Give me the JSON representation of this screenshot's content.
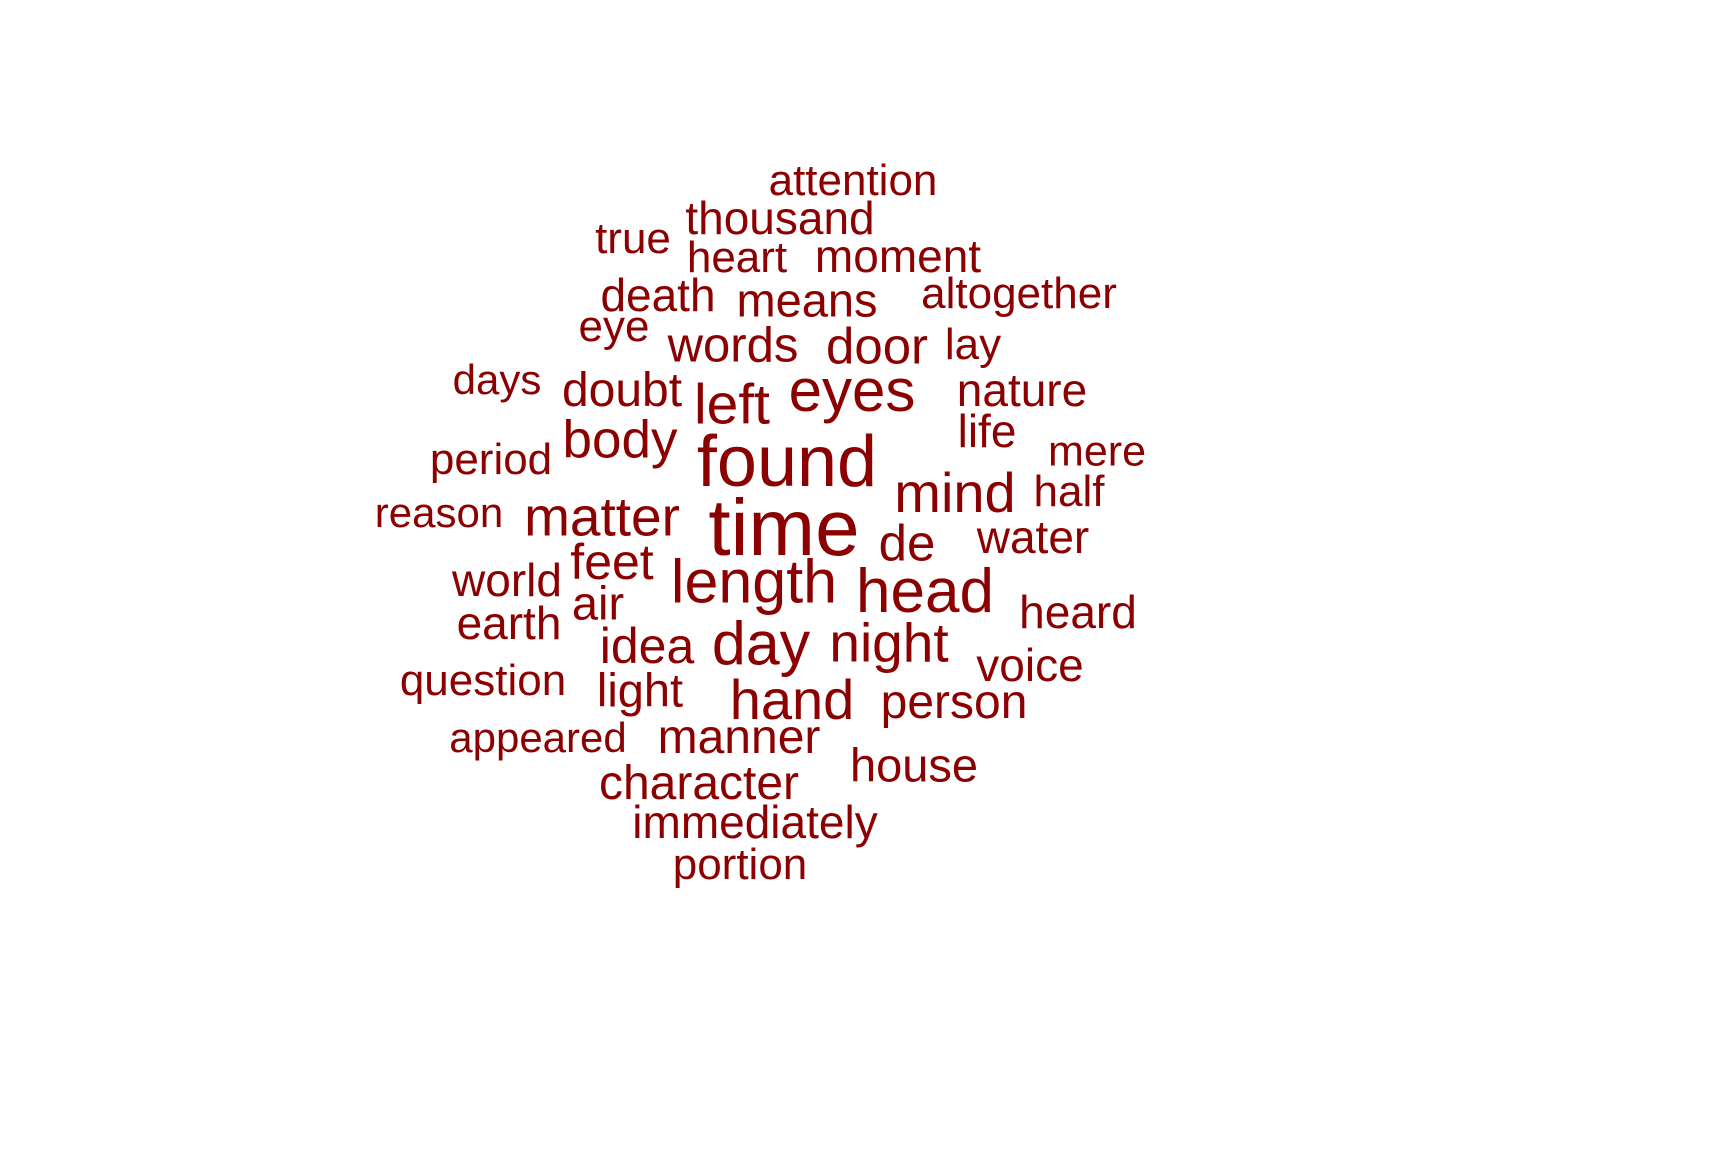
{
  "colors": {
    "background": "#ffffff",
    "word": "#8b0000"
  },
  "words": [
    {
      "id": "attention",
      "text": "attention",
      "weight": 1
    },
    {
      "id": "thousand",
      "text": "thousand",
      "weight": 1
    },
    {
      "id": "true",
      "text": "true",
      "weight": 1
    },
    {
      "id": "heart",
      "text": "heart",
      "weight": 1
    },
    {
      "id": "moment",
      "text": "moment",
      "weight": 1
    },
    {
      "id": "death",
      "text": "death",
      "weight": 1
    },
    {
      "id": "means",
      "text": "means",
      "weight": 1
    },
    {
      "id": "altogether",
      "text": "altogether",
      "weight": 1
    },
    {
      "id": "eye",
      "text": "eye",
      "weight": 1
    },
    {
      "id": "words",
      "text": "words",
      "weight": 1
    },
    {
      "id": "door",
      "text": "door",
      "weight": 1
    },
    {
      "id": "lay",
      "text": "lay",
      "weight": 1
    },
    {
      "id": "days",
      "text": "days",
      "weight": 1
    },
    {
      "id": "doubt",
      "text": "doubt",
      "weight": 1
    },
    {
      "id": "left",
      "text": "left",
      "weight": 2
    },
    {
      "id": "eyes",
      "text": "eyes",
      "weight": 3
    },
    {
      "id": "nature",
      "text": "nature",
      "weight": 1
    },
    {
      "id": "life",
      "text": "life",
      "weight": 1
    },
    {
      "id": "body",
      "text": "body",
      "weight": 2
    },
    {
      "id": "found",
      "text": "found",
      "weight": 4
    },
    {
      "id": "period",
      "text": "period",
      "weight": 1
    },
    {
      "id": "mere",
      "text": "mere",
      "weight": 1
    },
    {
      "id": "mind",
      "text": "mind",
      "weight": 2
    },
    {
      "id": "half",
      "text": "half",
      "weight": 1
    },
    {
      "id": "reason",
      "text": "reason",
      "weight": 1
    },
    {
      "id": "matter",
      "text": "matter",
      "weight": 2
    },
    {
      "id": "time",
      "text": "time",
      "weight": 5
    },
    {
      "id": "de",
      "text": "de",
      "weight": 1
    },
    {
      "id": "water",
      "text": "water",
      "weight": 1
    },
    {
      "id": "feet",
      "text": "feet",
      "weight": 1
    },
    {
      "id": "world",
      "text": "world",
      "weight": 1
    },
    {
      "id": "length",
      "text": "length",
      "weight": 3
    },
    {
      "id": "head",
      "text": "head",
      "weight": 3
    },
    {
      "id": "air",
      "text": "air",
      "weight": 1
    },
    {
      "id": "earth",
      "text": "earth",
      "weight": 1
    },
    {
      "id": "heard",
      "text": "heard",
      "weight": 1
    },
    {
      "id": "idea",
      "text": "idea",
      "weight": 1
    },
    {
      "id": "day",
      "text": "day",
      "weight": 3
    },
    {
      "id": "night",
      "text": "night",
      "weight": 2
    },
    {
      "id": "voice",
      "text": "voice",
      "weight": 1
    },
    {
      "id": "question",
      "text": "question",
      "weight": 1
    },
    {
      "id": "light",
      "text": "light",
      "weight": 1
    },
    {
      "id": "hand",
      "text": "hand",
      "weight": 2
    },
    {
      "id": "person",
      "text": "person",
      "weight": 1
    },
    {
      "id": "appeared",
      "text": "appeared",
      "weight": 1
    },
    {
      "id": "manner",
      "text": "manner",
      "weight": 1
    },
    {
      "id": "house",
      "text": "house",
      "weight": 1
    },
    {
      "id": "character",
      "text": "character",
      "weight": 1
    },
    {
      "id": "immediately",
      "text": "immediately",
      "weight": 1
    },
    {
      "id": "portion",
      "text": "portion",
      "weight": 1
    }
  ]
}
